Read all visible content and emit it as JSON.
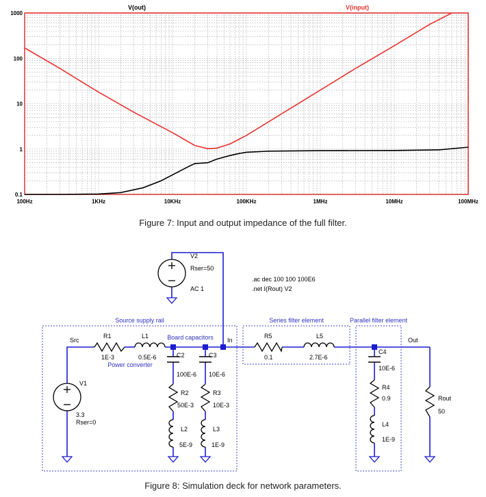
{
  "figure7": {
    "caption": "Figure 7: Input and output impedance of the full filter.",
    "chart_data": {
      "type": "line",
      "x_scale": "log",
      "y_scale": "log",
      "xlim_hz": [
        100,
        100000000
      ],
      "ylim": [
        0.1,
        1000
      ],
      "grid": true,
      "x_tick_labels": [
        "100Hz",
        "1KHz",
        "10KHz",
        "100KHz",
        "1MHz",
        "10MHz",
        "100MHz"
      ],
      "y_tick_labels": [
        "0.1",
        "1",
        "10",
        "100",
        "1000"
      ],
      "series": [
        {
          "name": "V(out)",
          "color": "#000000",
          "points": [
            [
              100,
              0.1
            ],
            [
              300,
              0.1
            ],
            [
              1000,
              0.102
            ],
            [
              2000,
              0.11
            ],
            [
              4000,
              0.14
            ],
            [
              7000,
              0.2
            ],
            [
              10000,
              0.27
            ],
            [
              15000,
              0.38
            ],
            [
              20000,
              0.48
            ],
            [
              30000,
              0.5
            ],
            [
              40000,
              0.6
            ],
            [
              60000,
              0.72
            ],
            [
              80000,
              0.8
            ],
            [
              100000,
              0.85
            ],
            [
              200000,
              0.9
            ],
            [
              1000000,
              0.92
            ],
            [
              10000000,
              0.93
            ],
            [
              40000000,
              0.96
            ],
            [
              100000000,
              1.1
            ]
          ]
        },
        {
          "name": "V(input)",
          "color": "#e8322e",
          "points": [
            [
              100,
              170
            ],
            [
              300,
              60
            ],
            [
              1000,
              18
            ],
            [
              3000,
              6.5
            ],
            [
              10000,
              2.3
            ],
            [
              20000,
              1.2
            ],
            [
              30000,
              1.02
            ],
            [
              40000,
              1.05
            ],
            [
              60000,
              1.3
            ],
            [
              100000,
              2
            ],
            [
              300000,
              6
            ],
            [
              1000000,
              20
            ],
            [
              3000000,
              60
            ],
            [
              10000000,
              190
            ],
            [
              30000,
              1.02
            ],
            [
              30000000,
              560
            ],
            [
              60000000,
              1000
            ]
          ]
        }
      ]
    }
  },
  "figure8": {
    "caption": "Figure 8: Simulation deck for network parameters.",
    "directives": [
      ".ac dec 100 100 100E6",
      ".net I(Rout) V2"
    ],
    "blocks": {
      "source": "Source supply rail",
      "series": "Series filter element",
      "parallel": "Parallel filter element"
    },
    "labels": {
      "board_caps": "Board capacitors",
      "power_converter": "Power converter",
      "src": "Src",
      "in": "In",
      "out": "Out"
    },
    "v2": {
      "name": "V2",
      "rser": "Rser=50",
      "ac": "AC 1"
    },
    "v1": {
      "name": "V1",
      "value": "3.3",
      "rser": "Rser=0"
    },
    "r1": {
      "name": "R1",
      "value": "1E-3"
    },
    "l1": {
      "name": "L1",
      "value": "0.5E-6"
    },
    "c2": {
      "name": "C2",
      "value": "100E-6"
    },
    "c3": {
      "name": "C3",
      "value": "10E-6"
    },
    "r2": {
      "name": "R2",
      "value": "50E-3"
    },
    "r3": {
      "name": "R3",
      "value": "10E-3"
    },
    "l2": {
      "name": "L2",
      "value": "5E-9"
    },
    "l3": {
      "name": "L3",
      "value": "1E-9"
    },
    "r5": {
      "name": "R5",
      "value": "0.1"
    },
    "l5": {
      "name": "L5",
      "value": "2.7E-6"
    },
    "c4": {
      "name": "C4",
      "value": "10E-6"
    },
    "r4": {
      "name": "R4",
      "value": "0.9"
    },
    "l4": {
      "name": "L4",
      "value": "1E-9"
    },
    "rout": {
      "name": "Rout",
      "value": "50"
    }
  }
}
